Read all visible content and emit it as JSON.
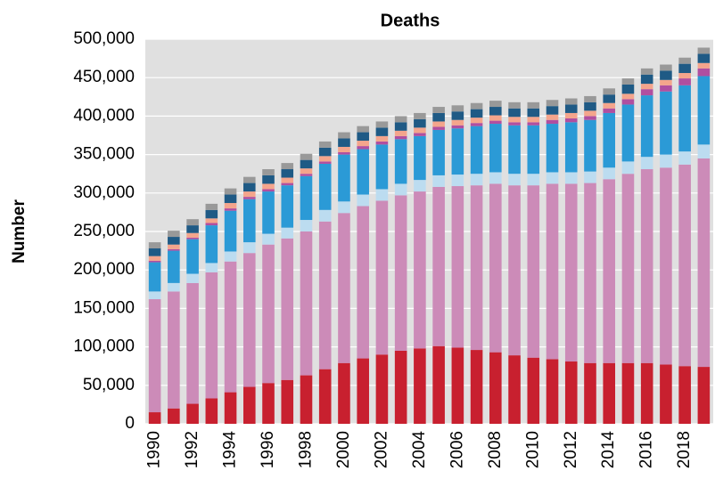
{
  "chart_data": {
    "type": "stacked_bar",
    "title": "Deaths",
    "y_label": "Number",
    "categories": [
      "1990",
      null,
      "1992",
      null,
      "1994",
      null,
      "1996",
      null,
      "1998",
      null,
      "2000",
      null,
      "2002",
      null,
      "2004",
      null,
      "2006",
      null,
      "2008",
      null,
      "2010",
      null,
      "2012",
      null,
      "2014",
      null,
      "2016",
      null,
      "2018",
      null
    ],
    "series": [
      {
        "color": "#c8202f",
        "values": [
          15000,
          20000,
          26000,
          33000,
          41000,
          48000,
          53000,
          57000,
          63000,
          71000,
          79000,
          85000,
          90000,
          95000,
          98000,
          101000,
          99000,
          96000,
          93000,
          89000,
          86000,
          84000,
          81000,
          79000,
          79000,
          79000,
          79000,
          77000,
          75000,
          74000
        ]
      },
      {
        "color": "#cc8bb8",
        "values": [
          147000,
          152000,
          157000,
          164000,
          170000,
          174000,
          180000,
          184000,
          187000,
          192000,
          195000,
          198000,
          200000,
          202000,
          204000,
          207000,
          210000,
          214000,
          219000,
          221000,
          224000,
          228000,
          231000,
          234000,
          239000,
          246000,
          252000,
          256000,
          262000,
          271000
        ]
      },
      {
        "color": "#bcdcf0",
        "values": [
          10000,
          11000,
          12000,
          12000,
          13000,
          14000,
          14000,
          14000,
          15000,
          15000,
          15000,
          15000,
          15000,
          15000,
          15000,
          15000,
          15000,
          15000,
          15000,
          15000,
          15000,
          15000,
          15000,
          15000,
          15000,
          16000,
          16000,
          17000,
          17000,
          18000
        ]
      },
      {
        "color": "#2b9ad6",
        "values": [
          38000,
          42000,
          45000,
          49000,
          53000,
          56000,
          55000,
          55000,
          57000,
          60000,
          61000,
          59000,
          58000,
          58000,
          57000,
          59000,
          60000,
          62000,
          63000,
          63000,
          63000,
          63000,
          65000,
          67000,
          71000,
          74000,
          80000,
          82000,
          86000,
          89000
        ]
      },
      {
        "color": "#b04fa0",
        "values": [
          2000,
          2000,
          2000,
          3000,
          3000,
          3000,
          3000,
          3000,
          3000,
          3000,
          3000,
          4000,
          4000,
          4000,
          4000,
          4000,
          4000,
          4000,
          4000,
          4000,
          4000,
          5000,
          5000,
          5000,
          6000,
          7000,
          8000,
          8000,
          9000,
          10000
        ]
      },
      {
        "color": "#f4a58c",
        "values": [
          6000,
          6000,
          6000,
          6000,
          7000,
          7000,
          7000,
          7000,
          7000,
          7000,
          7000,
          7000,
          7000,
          7000,
          7000,
          7000,
          7000,
          7000,
          7000,
          7000,
          7000,
          7000,
          7000,
          7000,
          7000,
          7000,
          7000,
          7000,
          7000,
          7000
        ]
      },
      {
        "color": "#1f5a85",
        "values": [
          10000,
          10000,
          10000,
          11000,
          11000,
          11000,
          11000,
          11000,
          11000,
          11000,
          11000,
          11000,
          11000,
          11000,
          11000,
          11000,
          11000,
          11000,
          11000,
          11000,
          11000,
          11000,
          11000,
          11000,
          11000,
          12000,
          12000,
          12000,
          12000,
          12000
        ]
      },
      {
        "color": "#999999",
        "values": [
          8000,
          8000,
          8000,
          8000,
          8000,
          8000,
          8000,
          8000,
          8000,
          8000,
          8000,
          8000,
          8000,
          8000,
          8000,
          8000,
          8000,
          8000,
          8000,
          8000,
          8000,
          8000,
          8000,
          8000,
          8000,
          8000,
          8000,
          8000,
          8000,
          8000
        ]
      }
    ],
    "ylim": [
      0,
      500000
    ],
    "yticks": [
      0,
      {
        "value": 50000,
        "label": "50,000"
      },
      {
        "value": 100000,
        "label": "100,000"
      },
      {
        "value": 150000,
        "label": "150,000"
      },
      {
        "value": 200000,
        "label": "200,000"
      },
      {
        "value": 250000,
        "label": "250,000"
      },
      {
        "value": 300000,
        "label": "300,000"
      },
      {
        "value": 350000,
        "label": "350,000"
      },
      {
        "value": 400000,
        "label": "400,000"
      },
      {
        "value": 450000,
        "label": "450,000"
      },
      {
        "value": 500000,
        "label": "500,000"
      }
    ],
    "grid": true
  }
}
